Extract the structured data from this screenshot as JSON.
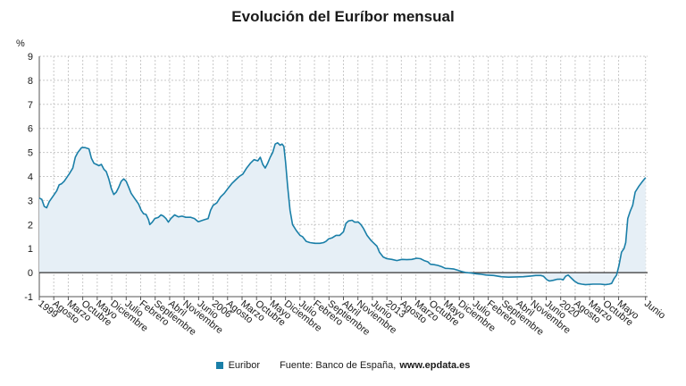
{
  "chart_data": {
    "type": "area",
    "title": "Evolución del Euríbor mensual",
    "ylabel": "%",
    "ylim": [
      -1,
      9
    ],
    "yticks": [
      -1,
      0,
      1,
      2,
      3,
      4,
      5,
      6,
      7,
      8,
      9
    ],
    "xlim": [
      1999.0,
      2023.5
    ],
    "grid": true,
    "legend_position": "bottom",
    "color": "#1a7fa8",
    "fill_color": "#e6eff6",
    "tick_labels": [
      {
        "label": "1999",
        "x": 1999.0
      },
      {
        "label": "Agosto",
        "x": 1999.583
      },
      {
        "label": "Marzo",
        "x": 2000.167
      },
      {
        "label": "Octubre",
        "x": 2000.75
      },
      {
        "label": "Mayo",
        "x": 2001.333
      },
      {
        "label": "Diciembre",
        "x": 2001.917
      },
      {
        "label": "Julio",
        "x": 2002.5
      },
      {
        "label": "Febrero",
        "x": 2003.083
      },
      {
        "label": "Septiembre",
        "x": 2003.667
      },
      {
        "label": "Abril",
        "x": 2004.25
      },
      {
        "label": "Noviembre",
        "x": 2004.833
      },
      {
        "label": "Junio",
        "x": 2005.417
      },
      {
        "label": "2006",
        "x": 2006.0
      },
      {
        "label": "Agosto",
        "x": 2006.583
      },
      {
        "label": "Marzo",
        "x": 2007.167
      },
      {
        "label": "Octubre",
        "x": 2007.75
      },
      {
        "label": "Mayo",
        "x": 2008.333
      },
      {
        "label": "Diciembre",
        "x": 2008.917
      },
      {
        "label": "Julio",
        "x": 2009.5
      },
      {
        "label": "Febrero",
        "x": 2010.083
      },
      {
        "label": "Septiembre",
        "x": 2010.667
      },
      {
        "label": "Abril",
        "x": 2011.25
      },
      {
        "label": "Noviembre",
        "x": 2011.833
      },
      {
        "label": "Junio",
        "x": 2012.417
      },
      {
        "label": "2013",
        "x": 2013.0
      },
      {
        "label": "Agosto",
        "x": 2013.583
      },
      {
        "label": "Marzo",
        "x": 2014.167
      },
      {
        "label": "Octubre",
        "x": 2014.75
      },
      {
        "label": "Mayo",
        "x": 2015.333
      },
      {
        "label": "Diciembre",
        "x": 2015.917
      },
      {
        "label": "Julio",
        "x": 2016.5
      },
      {
        "label": "Febrero",
        "x": 2017.083
      },
      {
        "label": "Septiembre",
        "x": 2017.667
      },
      {
        "label": "Abril",
        "x": 2018.25
      },
      {
        "label": "Noviembre",
        "x": 2018.833
      },
      {
        "label": "Junio",
        "x": 2019.417
      },
      {
        "label": "2020",
        "x": 2020.0
      },
      {
        "label": "Agosto",
        "x": 2020.583
      },
      {
        "label": "Marzo",
        "x": 2021.167
      },
      {
        "label": "Octubre",
        "x": 2021.75
      },
      {
        "label": "Mayo",
        "x": 2022.333
      },
      {
        "label": "Junio",
        "x": 2023.417
      }
    ],
    "series": [
      {
        "name": "Euribor",
        "points": [
          [
            1999.0,
            3.1
          ],
          [
            1999.1,
            3.05
          ],
          [
            1999.2,
            2.75
          ],
          [
            1999.3,
            2.7
          ],
          [
            1999.4,
            2.95
          ],
          [
            1999.5,
            3.1
          ],
          [
            1999.6,
            3.25
          ],
          [
            1999.7,
            3.4
          ],
          [
            1999.8,
            3.65
          ],
          [
            1999.9,
            3.7
          ],
          [
            2000.0,
            3.8
          ],
          [
            2000.2,
            4.1
          ],
          [
            2000.35,
            4.35
          ],
          [
            2000.45,
            4.8
          ],
          [
            2000.55,
            5.0
          ],
          [
            2000.7,
            5.2
          ],
          [
            2000.85,
            5.2
          ],
          [
            2001.0,
            5.15
          ],
          [
            2001.1,
            4.75
          ],
          [
            2001.2,
            4.55
          ],
          [
            2001.3,
            4.5
          ],
          [
            2001.4,
            4.45
          ],
          [
            2001.5,
            4.5
          ],
          [
            2001.6,
            4.3
          ],
          [
            2001.7,
            4.2
          ],
          [
            2001.8,
            3.9
          ],
          [
            2001.9,
            3.5
          ],
          [
            2002.0,
            3.25
          ],
          [
            2002.1,
            3.35
          ],
          [
            2002.2,
            3.55
          ],
          [
            2002.3,
            3.8
          ],
          [
            2002.4,
            3.9
          ],
          [
            2002.5,
            3.8
          ],
          [
            2002.6,
            3.55
          ],
          [
            2002.7,
            3.3
          ],
          [
            2002.8,
            3.15
          ],
          [
            2002.9,
            3.0
          ],
          [
            2003.0,
            2.85
          ],
          [
            2003.1,
            2.6
          ],
          [
            2003.2,
            2.45
          ],
          [
            2003.3,
            2.42
          ],
          [
            2003.4,
            2.2
          ],
          [
            2003.45,
            2.0
          ],
          [
            2003.55,
            2.1
          ],
          [
            2003.65,
            2.25
          ],
          [
            2003.8,
            2.3
          ],
          [
            2003.9,
            2.4
          ],
          [
            2004.0,
            2.35
          ],
          [
            2004.1,
            2.25
          ],
          [
            2004.2,
            2.1
          ],
          [
            2004.3,
            2.25
          ],
          [
            2004.45,
            2.4
          ],
          [
            2004.6,
            2.32
          ],
          [
            2004.75,
            2.35
          ],
          [
            2004.9,
            2.3
          ],
          [
            2005.1,
            2.3
          ],
          [
            2005.25,
            2.25
          ],
          [
            2005.4,
            2.12
          ],
          [
            2005.5,
            2.15
          ],
          [
            2005.65,
            2.2
          ],
          [
            2005.8,
            2.25
          ],
          [
            2005.9,
            2.6
          ],
          [
            2006.0,
            2.8
          ],
          [
            2006.15,
            2.9
          ],
          [
            2006.3,
            3.15
          ],
          [
            2006.45,
            3.3
          ],
          [
            2006.6,
            3.5
          ],
          [
            2006.75,
            3.7
          ],
          [
            2006.9,
            3.85
          ],
          [
            2007.05,
            4.0
          ],
          [
            2007.2,
            4.1
          ],
          [
            2007.35,
            4.35
          ],
          [
            2007.5,
            4.55
          ],
          [
            2007.65,
            4.7
          ],
          [
            2007.8,
            4.65
          ],
          [
            2007.9,
            4.8
          ],
          [
            2008.0,
            4.5
          ],
          [
            2008.1,
            4.35
          ],
          [
            2008.2,
            4.55
          ],
          [
            2008.3,
            4.8
          ],
          [
            2008.4,
            5.0
          ],
          [
            2008.5,
            5.35
          ],
          [
            2008.6,
            5.4
          ],
          [
            2008.7,
            5.3
          ],
          [
            2008.78,
            5.35
          ],
          [
            2008.85,
            5.25
          ],
          [
            2008.92,
            4.6
          ],
          [
            2009.0,
            3.6
          ],
          [
            2009.1,
            2.6
          ],
          [
            2009.2,
            2.0
          ],
          [
            2009.35,
            1.75
          ],
          [
            2009.5,
            1.55
          ],
          [
            2009.6,
            1.5
          ],
          [
            2009.75,
            1.3
          ],
          [
            2009.9,
            1.25
          ],
          [
            2010.1,
            1.22
          ],
          [
            2010.3,
            1.22
          ],
          [
            2010.45,
            1.25
          ],
          [
            2010.55,
            1.3
          ],
          [
            2010.65,
            1.4
          ],
          [
            2010.8,
            1.45
          ],
          [
            2010.95,
            1.55
          ],
          [
            2011.1,
            1.55
          ],
          [
            2011.25,
            1.7
          ],
          [
            2011.35,
            2.05
          ],
          [
            2011.45,
            2.15
          ],
          [
            2011.6,
            2.18
          ],
          [
            2011.7,
            2.1
          ],
          [
            2011.85,
            2.1
          ],
          [
            2011.95,
            2.0
          ],
          [
            2012.05,
            1.85
          ],
          [
            2012.2,
            1.55
          ],
          [
            2012.35,
            1.35
          ],
          [
            2012.5,
            1.2
          ],
          [
            2012.6,
            1.1
          ],
          [
            2012.7,
            0.85
          ],
          [
            2012.85,
            0.65
          ],
          [
            2013.0,
            0.58
          ],
          [
            2013.2,
            0.55
          ],
          [
            2013.4,
            0.5
          ],
          [
            2013.6,
            0.55
          ],
          [
            2013.8,
            0.54
          ],
          [
            2014.0,
            0.55
          ],
          [
            2014.2,
            0.6
          ],
          [
            2014.35,
            0.58
          ],
          [
            2014.5,
            0.5
          ],
          [
            2014.65,
            0.45
          ],
          [
            2014.75,
            0.35
          ],
          [
            2014.9,
            0.33
          ],
          [
            2015.05,
            0.3
          ],
          [
            2015.2,
            0.25
          ],
          [
            2015.35,
            0.18
          ],
          [
            2015.5,
            0.17
          ],
          [
            2015.7,
            0.15
          ],
          [
            2015.85,
            0.1
          ],
          [
            2016.0,
            0.05
          ],
          [
            2016.2,
            0.0
          ],
          [
            2016.4,
            -0.02
          ],
          [
            2016.6,
            -0.05
          ],
          [
            2016.8,
            -0.07
          ],
          [
            2017.0,
            -0.1
          ],
          [
            2017.3,
            -0.12
          ],
          [
            2017.6,
            -0.17
          ],
          [
            2017.9,
            -0.19
          ],
          [
            2018.2,
            -0.18
          ],
          [
            2018.5,
            -0.17
          ],
          [
            2018.8,
            -0.14
          ],
          [
            2019.0,
            -0.12
          ],
          [
            2019.2,
            -0.12
          ],
          [
            2019.3,
            -0.15
          ],
          [
            2019.45,
            -0.3
          ],
          [
            2019.55,
            -0.35
          ],
          [
            2019.7,
            -0.32
          ],
          [
            2019.85,
            -0.28
          ],
          [
            2020.0,
            -0.27
          ],
          [
            2020.1,
            -0.3
          ],
          [
            2020.2,
            -0.15
          ],
          [
            2020.3,
            -0.1
          ],
          [
            2020.4,
            -0.2
          ],
          [
            2020.55,
            -0.35
          ],
          [
            2020.7,
            -0.45
          ],
          [
            2020.85,
            -0.48
          ],
          [
            2021.0,
            -0.5
          ],
          [
            2021.3,
            -0.48
          ],
          [
            2021.6,
            -0.48
          ],
          [
            2021.8,
            -0.5
          ],
          [
            2021.95,
            -0.48
          ],
          [
            2022.05,
            -0.45
          ],
          [
            2022.15,
            -0.25
          ],
          [
            2022.25,
            -0.1
          ],
          [
            2022.35,
            0.3
          ],
          [
            2022.45,
            0.85
          ],
          [
            2022.55,
            1.0
          ],
          [
            2022.62,
            1.25
          ],
          [
            2022.7,
            2.25
          ],
          [
            2022.8,
            2.55
          ],
          [
            2022.9,
            2.8
          ],
          [
            2023.0,
            3.35
          ],
          [
            2023.15,
            3.6
          ],
          [
            2023.3,
            3.8
          ],
          [
            2023.42,
            3.95
          ]
        ]
      }
    ],
    "source_label": "Fuente: Banco de España,",
    "source_site": "www.epdata.es"
  }
}
